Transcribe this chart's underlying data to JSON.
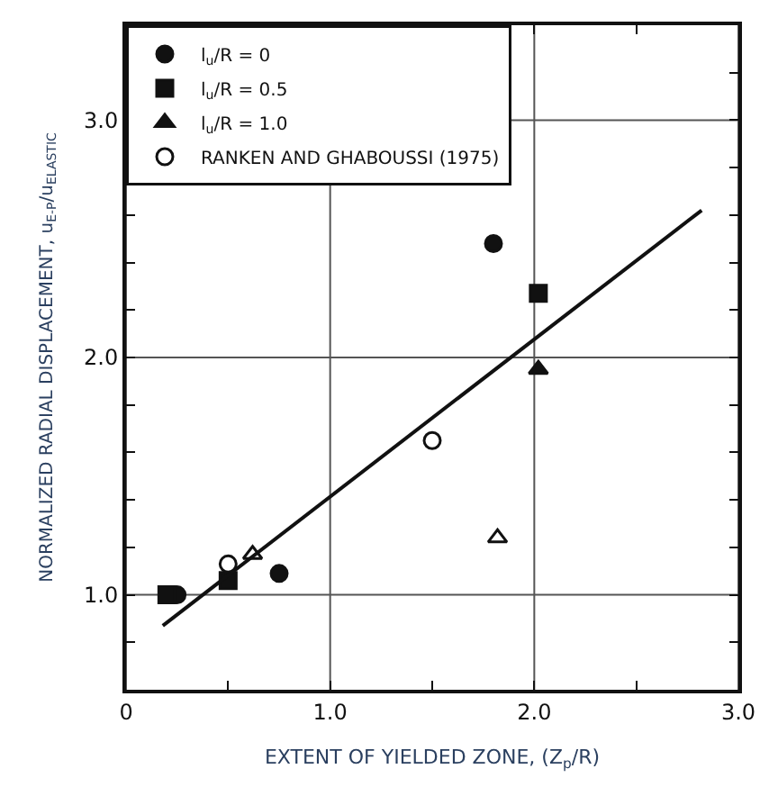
{
  "chart_data": {
    "type": "scatter",
    "xlabel": "EXTENT OF YIELDED ZONE, (Z$_{p}$/R)",
    "ylabel": "NORMALIZED RADIAL DISPLACEMENT, u$_{E-P}$/u$_{ELASTIC}$",
    "xlim": [
      0,
      3
    ],
    "ylim": [
      0.6,
      3.4
    ],
    "xticks": [
      0,
      {
        "value": 0.5,
        "label": null
      },
      {
        "value": 1,
        "label": "1.0"
      },
      {
        "value": 1.5,
        "label": null
      },
      {
        "value": 2,
        "label": "2.0"
      },
      {
        "value": 2.5,
        "label": null
      },
      {
        "value": 3,
        "label": "3.0"
      }
    ],
    "yticks": [
      {
        "value": 0.8,
        "label": null
      },
      {
        "value": 1,
        "label": "1.0"
      },
      {
        "value": 1.2,
        "label": null
      },
      {
        "value": 1.4,
        "label": null
      },
      {
        "value": 1.6,
        "label": null
      },
      {
        "value": 1.8,
        "label": null
      },
      {
        "value": 2,
        "label": "2.0"
      },
      {
        "value": 2.2,
        "label": null
      },
      {
        "value": 2.4,
        "label": null
      },
      {
        "value": 2.6,
        "label": null
      },
      {
        "value": 2.8,
        "label": null
      },
      {
        "value": 3,
        "label": "3.0"
      },
      {
        "value": 3.2,
        "label": null
      }
    ],
    "grid": true,
    "legend": "top left",
    "series": [
      {
        "name": "l$_{u}$/R = 0",
        "color": "#111111",
        "marker": "circle",
        "x": [
          0.25,
          0.75,
          1.8
        ],
        "values": [
          1.0,
          1.09,
          2.48
        ]
      },
      {
        "name": "l$_{u}$/R = 0.5",
        "color": "#111111",
        "marker": "square",
        "x": [
          0.2,
          0.5,
          2.02
        ],
        "values": [
          1.0,
          1.06,
          2.27
        ]
      },
      {
        "name": "l$_{u}$/R = 1.0",
        "color": "#111111",
        "marker": "triangle",
        "x": [
          2.02
        ],
        "values": [
          1.95
        ]
      },
      {
        "name": "RANKEN AND GHABOUSSI (1975)",
        "color": "#ffffff",
        "marker": "circle",
        "x": [
          0.5,
          1.5
        ],
        "values": [
          1.13,
          1.65
        ]
      },
      {
        "color": "#ffffff",
        "marker": "triangle",
        "x": [
          0.62,
          1.82
        ],
        "values": [
          1.17,
          1.24
        ]
      },
      {
        "type": "line",
        "color": "#111111",
        "marker": "none",
        "x": [
          0.18,
          2.82
        ],
        "values": [
          0.87,
          2.62
        ]
      }
    ]
  }
}
